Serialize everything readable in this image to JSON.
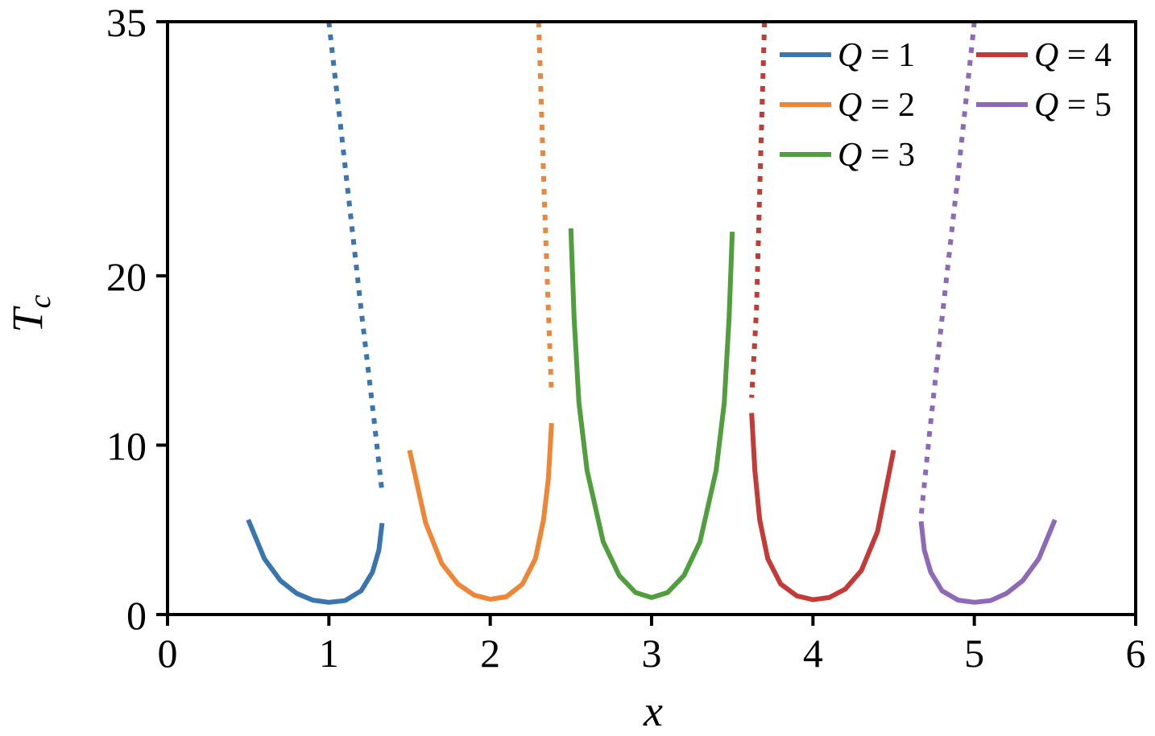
{
  "chart_data": {
    "type": "line",
    "xlabel": "x",
    "ylabel_main": "T",
    "ylabel_sub": "c",
    "xlim": [
      0,
      6
    ],
    "ylim": [
      0,
      35
    ],
    "xticks": [
      0,
      1,
      2,
      3,
      4,
      5,
      6
    ],
    "yticks": [
      0,
      10,
      20,
      35
    ],
    "grid": false,
    "legend_position": "top-right",
    "series": [
      {
        "name": "Q = 1",
        "legend_var": "Q",
        "legend_rest": " = 1",
        "color": "#3a75af",
        "solid": [
          [
            0.5,
            5.6
          ],
          [
            0.6,
            3.3
          ],
          [
            0.7,
            2.0
          ],
          [
            0.8,
            1.25
          ],
          [
            0.9,
            0.85
          ],
          [
            1.0,
            0.72
          ],
          [
            1.1,
            0.82
          ],
          [
            1.2,
            1.4
          ],
          [
            1.27,
            2.5
          ],
          [
            1.31,
            3.8
          ],
          [
            1.33,
            5.4
          ]
        ],
        "dotted": [
          [
            1.0,
            35.0
          ],
          [
            1.1,
            26.5
          ],
          [
            1.2,
            18.0
          ],
          [
            1.28,
            11.5
          ],
          [
            1.33,
            7.2
          ]
        ]
      },
      {
        "name": "Q = 2",
        "legend_var": "Q",
        "legend_rest": " = 2",
        "color": "#ef8636",
        "solid": [
          [
            1.5,
            9.7
          ],
          [
            1.6,
            5.4
          ],
          [
            1.7,
            3.0
          ],
          [
            1.8,
            1.8
          ],
          [
            1.9,
            1.15
          ],
          [
            2.0,
            0.9
          ],
          [
            2.1,
            1.05
          ],
          [
            2.2,
            1.8
          ],
          [
            2.28,
            3.3
          ],
          [
            2.33,
            5.6
          ],
          [
            2.36,
            8.0
          ],
          [
            2.38,
            11.3
          ]
        ],
        "dotted": [
          [
            2.3,
            35.0
          ],
          [
            2.33,
            26.0
          ],
          [
            2.36,
            18.0
          ],
          [
            2.38,
            13.0
          ]
        ]
      },
      {
        "name": "Q = 3",
        "legend_var": "Q",
        "legend_rest": " = 3",
        "color": "#519e3e",
        "solid": [
          [
            2.5,
            22.8
          ],
          [
            2.52,
            17.5
          ],
          [
            2.55,
            12.5
          ],
          [
            2.6,
            8.5
          ],
          [
            2.7,
            4.3
          ],
          [
            2.8,
            2.3
          ],
          [
            2.9,
            1.3
          ],
          [
            3.0,
            1.0
          ],
          [
            3.1,
            1.3
          ],
          [
            3.2,
            2.3
          ],
          [
            3.3,
            4.3
          ],
          [
            3.4,
            8.5
          ],
          [
            3.45,
            12.5
          ],
          [
            3.48,
            17.5
          ],
          [
            3.5,
            22.6
          ]
        ],
        "dotted": []
      },
      {
        "name": "Q = 4",
        "legend_var": "Q",
        "legend_rest": " = 4",
        "color": "#c43a36",
        "solid": [
          [
            3.62,
            11.9
          ],
          [
            3.64,
            8.5
          ],
          [
            3.67,
            5.6
          ],
          [
            3.72,
            3.3
          ],
          [
            3.8,
            1.8
          ],
          [
            3.9,
            1.1
          ],
          [
            4.0,
            0.88
          ],
          [
            4.1,
            1.0
          ],
          [
            4.2,
            1.5
          ],
          [
            4.3,
            2.6
          ],
          [
            4.4,
            4.9
          ],
          [
            4.5,
            9.7
          ]
        ],
        "dotted": [
          [
            3.7,
            35.0
          ],
          [
            3.67,
            25.0
          ],
          [
            3.65,
            18.0
          ],
          [
            3.62,
            12.8
          ]
        ]
      },
      {
        "name": "Q = 5",
        "legend_var": "Q",
        "legend_rest": " = 5",
        "color": "#8d69b8",
        "solid": [
          [
            4.67,
            5.5
          ],
          [
            4.69,
            3.8
          ],
          [
            4.73,
            2.5
          ],
          [
            4.8,
            1.4
          ],
          [
            4.9,
            0.85
          ],
          [
            5.0,
            0.72
          ],
          [
            5.1,
            0.82
          ],
          [
            5.2,
            1.25
          ],
          [
            5.3,
            2.0
          ],
          [
            5.4,
            3.3
          ],
          [
            5.5,
            5.6
          ]
        ],
        "dotted": [
          [
            5.0,
            35.0
          ],
          [
            4.9,
            26.0
          ],
          [
            4.8,
            17.5
          ],
          [
            4.72,
            10.5
          ],
          [
            4.67,
            5.8
          ]
        ]
      }
    ]
  }
}
